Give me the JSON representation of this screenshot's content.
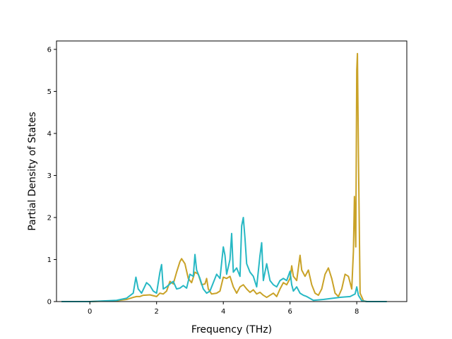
{
  "chart_data": {
    "type": "line",
    "title": "",
    "xlabel": "Frequency (THz)",
    "ylabel": "Partial Density of States",
    "xlim": [
      -1.0,
      9.5
    ],
    "ylim": [
      0,
      6.2
    ],
    "xticks": [
      0,
      2,
      4,
      6,
      8
    ],
    "yticks": [
      0,
      1,
      2,
      3,
      4,
      5,
      6
    ],
    "grid": false,
    "legend": "none",
    "series": [
      {
        "color": "#c9a227",
        "points": [
          [
            -0.85,
            0
          ],
          [
            0.0,
            0.0
          ],
          [
            0.8,
            0.02
          ],
          [
            1.1,
            0.05
          ],
          [
            1.3,
            0.1
          ],
          [
            1.4,
            0.12
          ],
          [
            1.5,
            0.12
          ],
          [
            1.6,
            0.15
          ],
          [
            1.8,
            0.16
          ],
          [
            2.0,
            0.12
          ],
          [
            2.1,
            0.2
          ],
          [
            2.2,
            0.18
          ],
          [
            2.3,
            0.25
          ],
          [
            2.4,
            0.48
          ],
          [
            2.5,
            0.42
          ],
          [
            2.6,
            0.7
          ],
          [
            2.7,
            0.95
          ],
          [
            2.75,
            1.02
          ],
          [
            2.85,
            0.9
          ],
          [
            2.95,
            0.55
          ],
          [
            3.05,
            0.45
          ],
          [
            3.15,
            0.7
          ],
          [
            3.25,
            0.65
          ],
          [
            3.35,
            0.4
          ],
          [
            3.45,
            0.42
          ],
          [
            3.5,
            0.55
          ],
          [
            3.55,
            0.3
          ],
          [
            3.65,
            0.18
          ],
          [
            3.8,
            0.2
          ],
          [
            3.9,
            0.25
          ],
          [
            4.0,
            0.58
          ],
          [
            4.1,
            0.55
          ],
          [
            4.2,
            0.6
          ],
          [
            4.3,
            0.35
          ],
          [
            4.4,
            0.2
          ],
          [
            4.5,
            0.35
          ],
          [
            4.6,
            0.4
          ],
          [
            4.7,
            0.3
          ],
          [
            4.8,
            0.22
          ],
          [
            4.9,
            0.28
          ],
          [
            5.0,
            0.18
          ],
          [
            5.1,
            0.22
          ],
          [
            5.2,
            0.15
          ],
          [
            5.3,
            0.1
          ],
          [
            5.4,
            0.15
          ],
          [
            5.5,
            0.2
          ],
          [
            5.6,
            0.12
          ],
          [
            5.7,
            0.3
          ],
          [
            5.8,
            0.45
          ],
          [
            5.9,
            0.4
          ],
          [
            6.0,
            0.55
          ],
          [
            6.05,
            0.85
          ],
          [
            6.1,
            0.6
          ],
          [
            6.2,
            0.5
          ],
          [
            6.25,
            0.8
          ],
          [
            6.3,
            1.1
          ],
          [
            6.35,
            0.75
          ],
          [
            6.45,
            0.6
          ],
          [
            6.55,
            0.75
          ],
          [
            6.65,
            0.4
          ],
          [
            6.75,
            0.2
          ],
          [
            6.85,
            0.15
          ],
          [
            6.95,
            0.3
          ],
          [
            7.05,
            0.65
          ],
          [
            7.15,
            0.8
          ],
          [
            7.25,
            0.55
          ],
          [
            7.35,
            0.2
          ],
          [
            7.45,
            0.12
          ],
          [
            7.55,
            0.3
          ],
          [
            7.65,
            0.65
          ],
          [
            7.75,
            0.6
          ],
          [
            7.85,
            0.3
          ],
          [
            7.9,
            1.2
          ],
          [
            7.93,
            2.5
          ],
          [
            7.97,
            1.3
          ],
          [
            8.0,
            5.5
          ],
          [
            8.02,
            5.9
          ],
          [
            8.05,
            3.5
          ],
          [
            8.1,
            0.2
          ],
          [
            8.2,
            0.02
          ],
          [
            8.3,
            0
          ],
          [
            8.9,
            0
          ]
        ]
      },
      {
        "color": "#27b8c4",
        "points": [
          [
            -0.85,
            0
          ],
          [
            0.0,
            0.0
          ],
          [
            0.8,
            0.03
          ],
          [
            1.1,
            0.08
          ],
          [
            1.3,
            0.2
          ],
          [
            1.38,
            0.58
          ],
          [
            1.45,
            0.3
          ],
          [
            1.55,
            0.2
          ],
          [
            1.7,
            0.45
          ],
          [
            1.8,
            0.38
          ],
          [
            1.9,
            0.25
          ],
          [
            2.0,
            0.2
          ],
          [
            2.1,
            0.7
          ],
          [
            2.15,
            0.88
          ],
          [
            2.2,
            0.3
          ],
          [
            2.3,
            0.35
          ],
          [
            2.4,
            0.42
          ],
          [
            2.5,
            0.48
          ],
          [
            2.6,
            0.3
          ],
          [
            2.7,
            0.32
          ],
          [
            2.8,
            0.38
          ],
          [
            2.9,
            0.32
          ],
          [
            3.0,
            0.65
          ],
          [
            3.1,
            0.6
          ],
          [
            3.15,
            1.12
          ],
          [
            3.2,
            0.75
          ],
          [
            3.3,
            0.55
          ],
          [
            3.4,
            0.3
          ],
          [
            3.5,
            0.2
          ],
          [
            3.6,
            0.25
          ],
          [
            3.7,
            0.45
          ],
          [
            3.8,
            0.65
          ],
          [
            3.9,
            0.55
          ],
          [
            4.0,
            1.3
          ],
          [
            4.05,
            1.1
          ],
          [
            4.1,
            0.65
          ],
          [
            4.2,
            1.0
          ],
          [
            4.25,
            1.62
          ],
          [
            4.3,
            0.7
          ],
          [
            4.4,
            0.8
          ],
          [
            4.5,
            0.6
          ],
          [
            4.55,
            1.8
          ],
          [
            4.6,
            2.0
          ],
          [
            4.65,
            1.5
          ],
          [
            4.7,
            0.9
          ],
          [
            4.8,
            0.7
          ],
          [
            4.9,
            0.6
          ],
          [
            5.0,
            0.35
          ],
          [
            5.1,
            1.1
          ],
          [
            5.15,
            1.4
          ],
          [
            5.2,
            0.5
          ],
          [
            5.3,
            0.9
          ],
          [
            5.4,
            0.5
          ],
          [
            5.5,
            0.4
          ],
          [
            5.6,
            0.35
          ],
          [
            5.7,
            0.5
          ],
          [
            5.8,
            0.55
          ],
          [
            5.9,
            0.5
          ],
          [
            6.0,
            0.72
          ],
          [
            6.05,
            0.4
          ],
          [
            6.1,
            0.25
          ],
          [
            6.2,
            0.35
          ],
          [
            6.3,
            0.2
          ],
          [
            6.4,
            0.15
          ],
          [
            6.5,
            0.12
          ],
          [
            6.7,
            0.03
          ],
          [
            7.0,
            0.05
          ],
          [
            7.5,
            0.1
          ],
          [
            7.8,
            0.12
          ],
          [
            7.95,
            0.18
          ],
          [
            8.0,
            0.35
          ],
          [
            8.05,
            0.15
          ],
          [
            8.15,
            0.02
          ],
          [
            8.3,
            0
          ],
          [
            8.9,
            0
          ]
        ]
      }
    ]
  }
}
